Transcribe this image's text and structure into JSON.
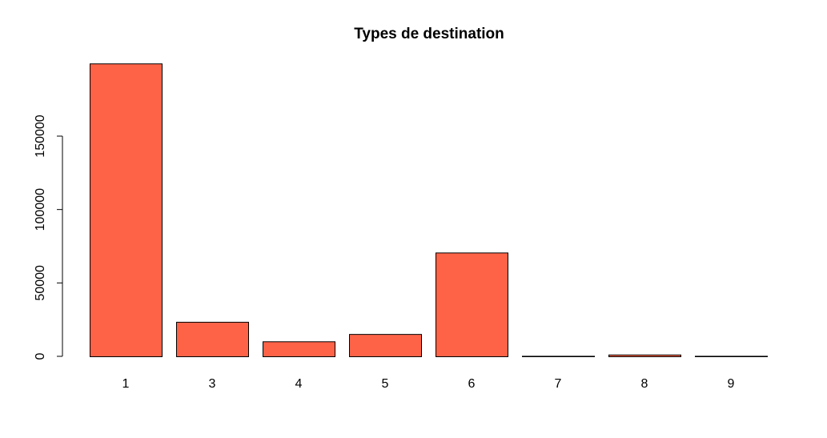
{
  "chart_data": {
    "type": "bar",
    "title": "Types de destination",
    "xlabel": "",
    "ylabel": "",
    "categories": [
      "1",
      "3",
      "4",
      "5",
      "6",
      "7",
      "8",
      "9"
    ],
    "values": [
      199500,
      23500,
      10200,
      15200,
      70700,
      300,
      1200,
      200
    ],
    "ylim": [
      0,
      200000
    ],
    "y_ticks": [
      0,
      50000,
      100000,
      150000
    ],
    "y_tick_labels": [
      "0",
      "50000",
      "100000",
      "150000"
    ],
    "grid": false,
    "legend": "none",
    "bar_color": "#ff6347",
    "edge_color": "#000000"
  }
}
